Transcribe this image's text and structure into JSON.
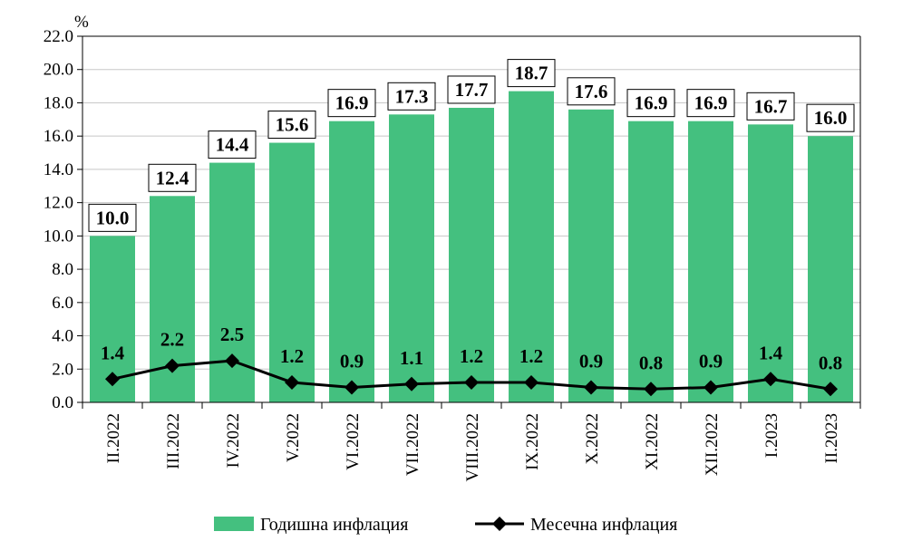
{
  "chart_data": {
    "type": "bar",
    "y_unit": "%",
    "ylim": [
      0,
      22
    ],
    "ytick_step": 2,
    "ytick_labels": [
      "0.0",
      "2.0",
      "4.0",
      "6.0",
      "8.0",
      "10.0",
      "12.0",
      "14.0",
      "16.0",
      "18.0",
      "20.0",
      "22.0"
    ],
    "grid": true,
    "legend_position": "bottom",
    "categories": [
      "II.2022",
      "III.2022",
      "IV.2022",
      "V.2022",
      "VI.2022",
      "VII.2022",
      "VIII.2022",
      "IX.2022",
      "X.2022",
      "XI.2022",
      "XII.2022",
      "I.2023",
      "II.2023"
    ],
    "series": [
      {
        "name": "Годишна инфлация",
        "type": "bar",
        "color": "#44c07f",
        "values": [
          10.0,
          12.4,
          14.4,
          15.6,
          16.9,
          17.3,
          17.7,
          18.7,
          17.6,
          16.9,
          16.9,
          16.7,
          16.0
        ],
        "labels": [
          "10.0",
          "12.4",
          "14.4",
          "15.6",
          "16.9",
          "17.3",
          "17.7",
          "18.7",
          "17.6",
          "16.9",
          "16.9",
          "16.7",
          "16.0"
        ]
      },
      {
        "name": "Месечна инфлация",
        "type": "line",
        "color": "#000000",
        "marker": "diamond",
        "values": [
          1.4,
          2.2,
          2.5,
          1.2,
          0.9,
          1.1,
          1.2,
          1.2,
          0.9,
          0.8,
          0.9,
          1.4,
          0.8
        ],
        "labels": [
          "1.4",
          "2.2",
          "2.5",
          "1.2",
          "0.9",
          "1.1",
          "1.2",
          "1.2",
          "0.9",
          "0.8",
          "0.9",
          "1.4",
          "0.8"
        ]
      }
    ]
  }
}
